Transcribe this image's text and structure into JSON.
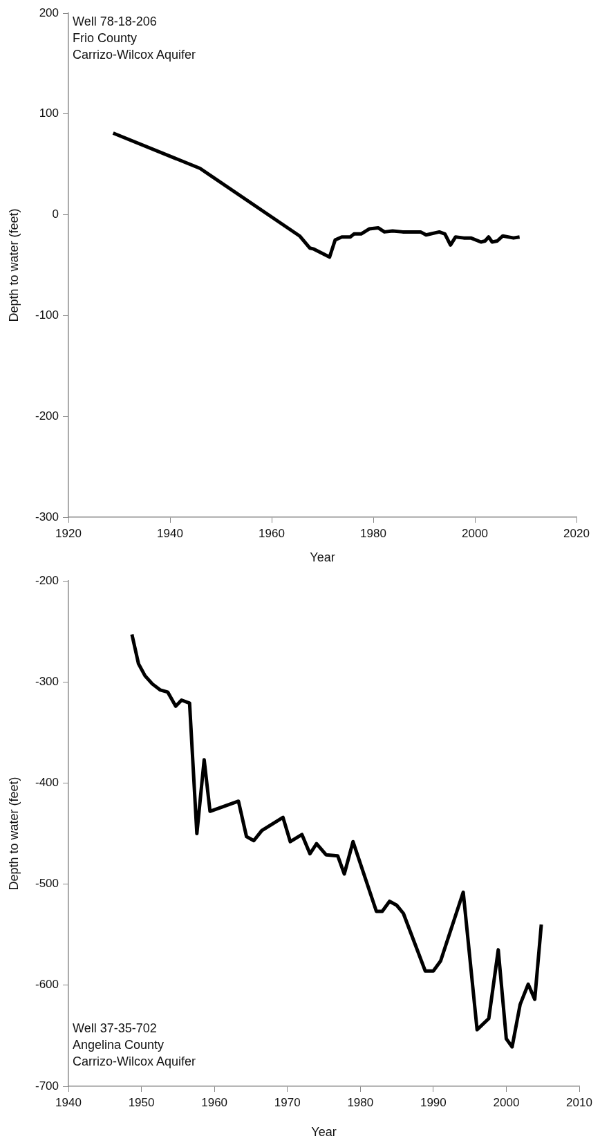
{
  "chart_data": [
    {
      "type": "line",
      "xlabel": "Year",
      "ylabel": "Depth to water (feet)",
      "annotations": [
        "Well 78-18-206",
        "Frio County",
        "Carrizo-Wilcox Aquifer"
      ],
      "x": [
        1928.8,
        1945.9,
        1965.5,
        1967.5,
        1968.3,
        1971.4,
        1972.5,
        1973.8,
        1975.5,
        1976.2,
        1977.6,
        1979.2,
        1981,
        1982.2,
        1983.8,
        1985.8,
        1989.3,
        1990.4,
        1993,
        1994.1,
        1995.2,
        1996.2,
        1997.8,
        1999.2,
        2001.2,
        2002,
        2002.7,
        2003.4,
        2004.4,
        2005.5,
        2007.6,
        2008.8
      ],
      "series": [
        {
          "color": "#000000",
          "values": [
            81,
            46,
            -21,
            -33,
            -34,
            -42,
            -25,
            -22,
            -22,
            -19,
            -19,
            -14,
            -13,
            -17,
            -16,
            -17,
            -17,
            -20,
            -17,
            -19,
            -30,
            -22,
            -23,
            -23,
            -27,
            -26,
            -22,
            -27,
            -26,
            -21,
            -23,
            -22
          ]
        }
      ],
      "xlim": [
        1920,
        2020
      ],
      "xticks": [
        1920,
        1940,
        1960,
        1980,
        2000,
        2020
      ],
      "ylim": [
        -300,
        200
      ],
      "yticks": [
        -300,
        -200,
        -100,
        0,
        100,
        200
      ],
      "grid": false,
      "legend": false,
      "marker": "none"
    },
    {
      "type": "line",
      "xlabel": "Year",
      "ylabel": "Depth to water (feet)",
      "annotations": [
        "Well 37-35-702",
        "Angelina County",
        "Carrizo-Wilcox Aquifer"
      ],
      "x": [
        1948.7,
        1949.6,
        1950.5,
        1951.5,
        1952.6,
        1953.6,
        1954.7,
        1955.5,
        1956.6,
        1957.6,
        1958.6,
        1959.4,
        1963.3,
        1964.4,
        1965.4,
        1966.5,
        1969.4,
        1970.4,
        1972,
        1973.1,
        1974,
        1975.3,
        1976.9,
        1977.8,
        1979,
        1982.2,
        1983,
        1984,
        1985,
        1985.9,
        1988.9,
        1990,
        1991,
        1994.1,
        1996,
        1997.6,
        1998.9,
        2000,
        2000.8,
        2001.9,
        2003,
        2003.9,
        2004.8
      ],
      "series": [
        {
          "color": "#000000",
          "values": [
            -253,
            -282,
            -294,
            -302,
            -308,
            -310,
            -324,
            -318,
            -321,
            -450,
            -377,
            -428,
            -418,
            -453,
            -457,
            -447,
            -434,
            -458,
            -451,
            -470,
            -460,
            -471,
            -472,
            -490,
            -458,
            -527,
            -527,
            -517,
            -521,
            -529,
            -586,
            -586,
            -576,
            -508,
            -644,
            -633,
            -565,
            -653,
            -661,
            -619,
            -599,
            -614,
            -540
          ]
        }
      ],
      "xlim": [
        1940,
        2010
      ],
      "xticks": [
        1940,
        1950,
        1960,
        1970,
        1980,
        1990,
        2000,
        2010
      ],
      "ylim": [
        -700,
        -200
      ],
      "yticks": [
        -700,
        -600,
        -500,
        -400,
        -300,
        -200
      ],
      "grid": false,
      "legend": false,
      "marker": "none"
    }
  ]
}
